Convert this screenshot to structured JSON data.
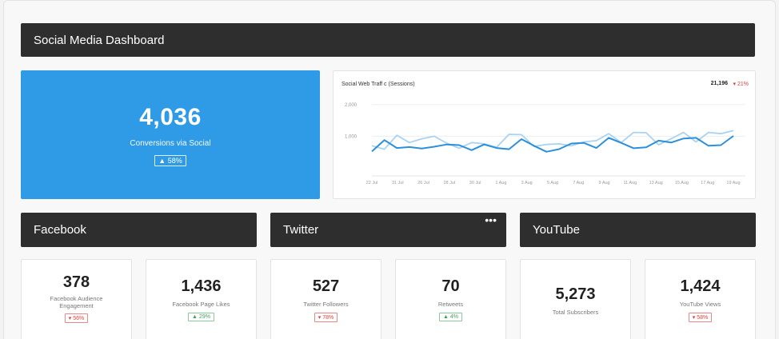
{
  "dashboard": {
    "title": "Social Media Dashboard"
  },
  "hero": {
    "value": "4,036",
    "label": "Conversions via Social",
    "badge": "▲ 58%"
  },
  "traffic": {
    "title": "Social Web Traff c (Sessions)",
    "total": "21,196",
    "change": "▾ 21%",
    "yticks": [
      "2,000",
      "1,000"
    ],
    "xticks": [
      "22 Jul",
      "31 Jul",
      "26 Jul",
      "28 Jul",
      "30 Jul",
      "1 Aug",
      "3 Aug",
      "5 Aug",
      "7 Aug",
      "9 Aug",
      "11 Aug",
      "13 Aug",
      "15 Aug",
      "17 Aug",
      "19 Aug"
    ]
  },
  "chart_data": {
    "type": "line",
    "title": "Social Web Traff c (Sessions)",
    "ylim": [
      0,
      2500
    ],
    "x_labels": [
      "22 Jul",
      "31 Jul",
      "26 Jul",
      "28 Jul",
      "30 Jul",
      "1 Aug",
      "3 Aug",
      "5 Aug",
      "7 Aug",
      "9 Aug",
      "11 Aug",
      "13 Aug",
      "15 Aug",
      "17 Aug",
      "19 Aug"
    ],
    "series": [
      {
        "values": [
          520,
          880,
          630,
          660,
          610,
          670,
          740,
          720,
          560,
          740,
          630,
          590,
          910,
          700,
          510,
          590,
          770,
          790,
          630,
          950,
          790,
          620,
          650,
          860,
          800,
          930,
          950,
          700,
          720,
          1010
        ]
      },
      {
        "values": [
          700,
          590,
          1030,
          800,
          920,
          1000,
          780,
          620,
          800,
          760,
          650,
          1060,
          1050,
          680,
          740,
          760,
          700,
          820,
          860,
          1080,
          800,
          1120,
          1110,
          730,
          920,
          1120,
          820,
          1120,
          1080,
          1180
        ]
      }
    ],
    "colors": [
      "#2b90d9",
      "#a9d3f2"
    ]
  },
  "facebook": {
    "header": "Facebook",
    "engagement": {
      "value": "378",
      "label": "Facebook Audience Engagement",
      "badge": "▾ 56%"
    },
    "likes": {
      "value": "1,436",
      "label": "Facebook Page Likes",
      "badge": "▲ 29%"
    }
  },
  "twitter": {
    "header": "Twitter",
    "menu": "•••",
    "followers": {
      "value": "527",
      "label": "Twitter Followers",
      "badge": "▾ 78%"
    },
    "retweets": {
      "value": "70",
      "label": "Retweets",
      "badge": "▲ 4%"
    }
  },
  "youtube": {
    "header": "YouTube",
    "subscribers": {
      "value": "5,273",
      "label": "Total Subscribers"
    },
    "views": {
      "value": "1,424",
      "label": "YouTube Views",
      "badge": "▾ 58%"
    }
  }
}
